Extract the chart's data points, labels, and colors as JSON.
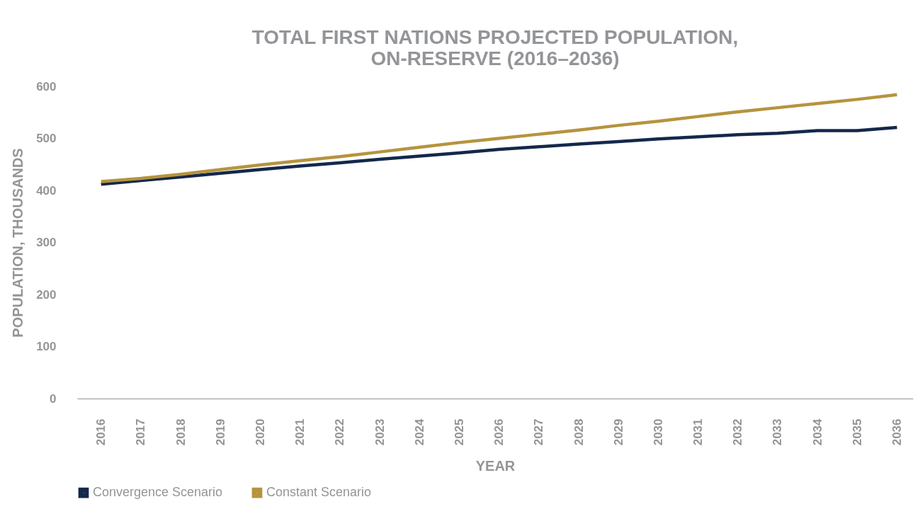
{
  "chart_data": {
    "type": "line",
    "title": [
      "TOTAL FIRST NATIONS PROJECTED POPULATION,",
      "ON-RESERVE (2016–2036)"
    ],
    "xlabel": "YEAR",
    "ylabel": "POPULATION, THOUSANDS",
    "categories": [
      "2016",
      "2017",
      "2018",
      "2019",
      "2020",
      "2021",
      "2022",
      "2023",
      "2024",
      "2025",
      "2026",
      "2027",
      "2028",
      "2029",
      "2030",
      "2031",
      "2032",
      "2033",
      "2034",
      "2035",
      "2036"
    ],
    "series": [
      {
        "name": "Convergence Scenario",
        "color": "#14284b",
        "values": [
          412,
          419,
          426,
          433,
          440,
          447,
          453,
          460,
          466,
          472,
          479,
          484,
          489,
          494,
          499,
          503,
          507,
          510,
          515,
          515,
          521
        ]
      },
      {
        "name": "Constant Scenario",
        "color": "#b5943f",
        "values": [
          417,
          423,
          431,
          440,
          449,
          457,
          465,
          474,
          483,
          492,
          500,
          508,
          516,
          525,
          533,
          542,
          551,
          559,
          567,
          575,
          584
        ]
      }
    ],
    "ylim": [
      0,
      600
    ],
    "yticks": [
      0,
      100,
      200,
      300,
      400,
      500,
      600
    ],
    "grid": false,
    "legend": "bottom",
    "marker": "none",
    "line_style": "solid"
  }
}
